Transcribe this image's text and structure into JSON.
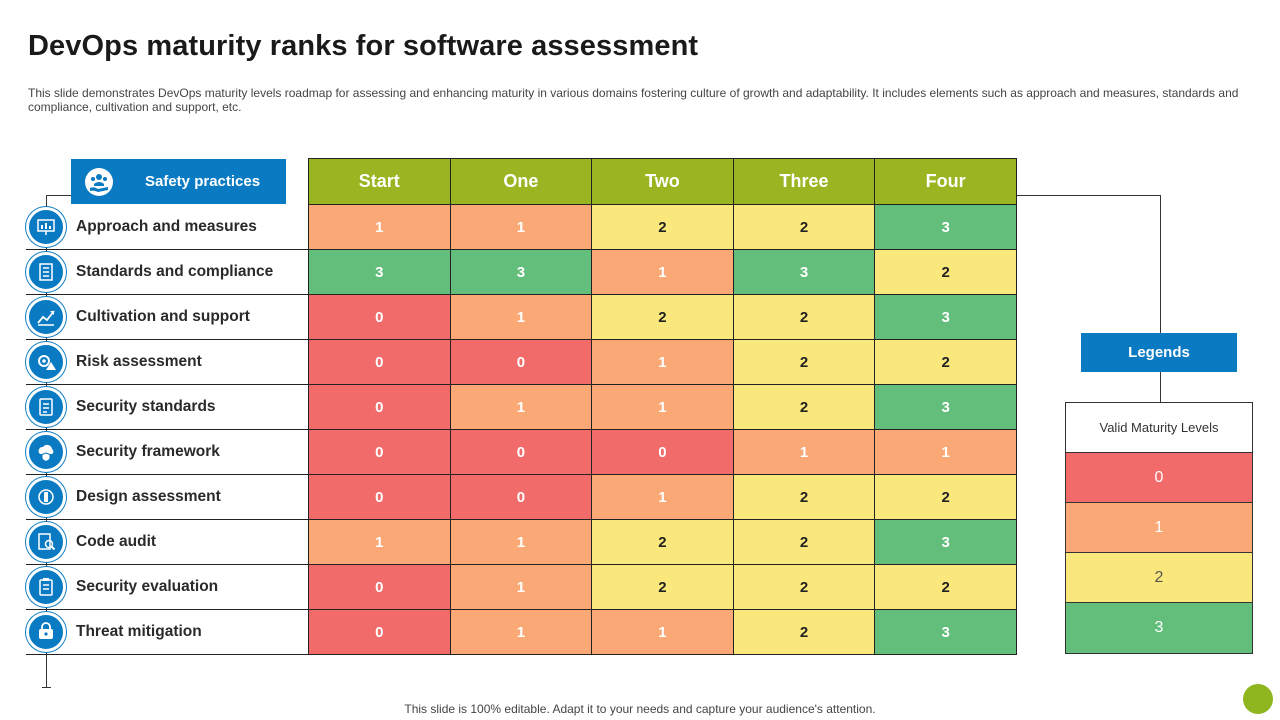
{
  "title": "DevOps maturity ranks for software assessment",
  "subtitle": "This slide demonstrates DevOps maturity levels roadmap for assessing and enhancing maturity in various domains fostering culture of growth and adaptability. It includes elements such as approach and measures, standards and compliance, cultivation and support, etc.",
  "safety_header": "Safety practices",
  "columns": [
    "Start",
    "One",
    "Two",
    "Three",
    "Four"
  ],
  "rows": [
    {
      "label": "Approach and measures",
      "icon": "chart-board-icon",
      "values": [
        1,
        1,
        2,
        2,
        3
      ]
    },
    {
      "label": "Standards and compliance",
      "icon": "checklist-icon",
      "values": [
        3,
        3,
        1,
        3,
        2
      ]
    },
    {
      "label": "Cultivation and support",
      "icon": "growth-icon",
      "values": [
        0,
        1,
        2,
        2,
        3
      ]
    },
    {
      "label": "Risk assessment",
      "icon": "gear-warning-icon",
      "values": [
        0,
        0,
        1,
        2,
        2
      ]
    },
    {
      "label": "Security standards",
      "icon": "document-icon",
      "values": [
        0,
        1,
        1,
        2,
        3
      ]
    },
    {
      "label": "Security framework",
      "icon": "cloud-shield-icon",
      "values": [
        0,
        0,
        0,
        1,
        1
      ]
    },
    {
      "label": "Design assessment",
      "icon": "design-icon",
      "values": [
        0,
        0,
        1,
        2,
        2
      ]
    },
    {
      "label": "Code audit",
      "icon": "code-audit-icon",
      "values": [
        1,
        1,
        2,
        2,
        3
      ]
    },
    {
      "label": "Security evaluation",
      "icon": "clipboard-icon",
      "values": [
        0,
        1,
        2,
        2,
        2
      ]
    },
    {
      "label": "Threat mitigation",
      "icon": "lock-icon",
      "values": [
        0,
        1,
        1,
        2,
        3
      ]
    }
  ],
  "legends": {
    "header": "Legends",
    "title": "Valid Maturity Levels",
    "levels": [
      "0",
      "1",
      "2",
      "3"
    ]
  },
  "colors": {
    "level_0": "#f26b6b",
    "level_1": "#f9a876",
    "level_2": "#fbe87c",
    "level_3": "#63be7b",
    "header_green": "#9ab522",
    "accent_blue": "#0a7bc2"
  },
  "footer": "This slide is 100% editable. Adapt it to your needs and capture your audience's attention."
}
